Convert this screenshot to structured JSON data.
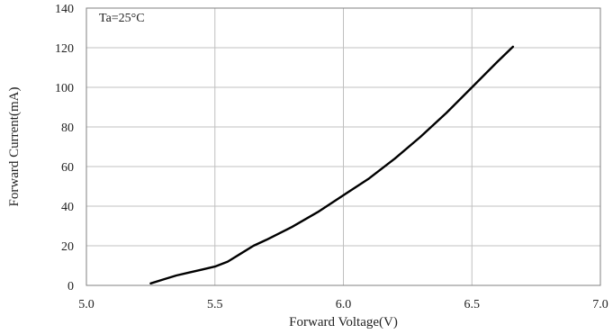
{
  "chart_data": {
    "type": "line",
    "title": "",
    "xlabel": "Forward Voltage(V)",
    "ylabel": "Forward Current(mA)",
    "annotation": "Ta=25°C",
    "xlim": [
      5.0,
      7.0
    ],
    "ylim": [
      0,
      140
    ],
    "xticks": [
      5.0,
      5.5,
      6.0,
      6.5,
      7.0
    ],
    "xtick_labels": [
      "5.0",
      "5.5",
      "6.0",
      "6.5",
      "7.0"
    ],
    "yticks": [
      0,
      20,
      40,
      60,
      80,
      100,
      120,
      140
    ],
    "ytick_labels": [
      "0",
      "20",
      "40",
      "60",
      "80",
      "100",
      "120",
      "140"
    ],
    "grid": true,
    "colors": {
      "line": "#000000",
      "grid": "#c0c0c0",
      "frame": "#808080"
    },
    "series": [
      {
        "x": [
          5.25,
          5.3,
          5.35,
          5.4,
          5.45,
          5.5,
          5.55,
          5.6,
          5.65,
          5.7,
          5.8,
          5.9,
          6.0,
          6.1,
          6.2,
          6.3,
          6.4,
          6.5,
          6.6,
          6.66
        ],
        "values": [
          1,
          3,
          5,
          6.5,
          8,
          9.5,
          12,
          16,
          20,
          23,
          29.5,
          37,
          45.5,
          54,
          64,
          75,
          87,
          100,
          113,
          120.5
        ]
      }
    ]
  }
}
